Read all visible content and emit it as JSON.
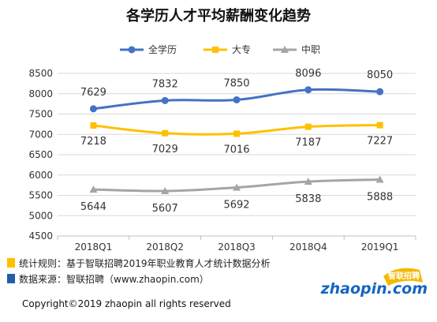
{
  "chart_data": {
    "type": "line",
    "title": "各学历人才平均薪酬变化趋势",
    "categories": [
      "2018Q1",
      "2018Q2",
      "2018Q3",
      "2018Q4",
      "2019Q1"
    ],
    "series": [
      {
        "name": "全学历",
        "color": "#4472c4",
        "marker": "circle",
        "values": [
          7629,
          7832,
          7850,
          8096,
          8050
        ]
      },
      {
        "name": "大专",
        "color": "#ffc000",
        "marker": "square",
        "values": [
          7218,
          7029,
          7016,
          7187,
          7227
        ]
      },
      {
        "name": "中职",
        "color": "#a5a5a5",
        "marker": "triangle",
        "values": [
          5644,
          5607,
          5692,
          5838,
          5888
        ]
      }
    ],
    "ylim": [
      4500,
      8500
    ],
    "yticks": [
      "8500",
      "8000",
      "7500",
      "7000",
      "6500",
      "6000",
      "5500",
      "5000",
      "4500"
    ],
    "grid": true,
    "legend_position": "top"
  },
  "notes": [
    {
      "color": "#ffc000",
      "text": "统计规则：基于智联招聘2019年职业教育人才统计数据分析"
    },
    {
      "color": "#1f5fa8",
      "text": "数据来源：智联招聘（www.zhaopin.com）"
    }
  ],
  "footer": {
    "copyright": "Copyright©2019 zhaopin all rights reserved"
  },
  "logo": {
    "text": "zhaopin.com",
    "badge": "智联招聘"
  }
}
